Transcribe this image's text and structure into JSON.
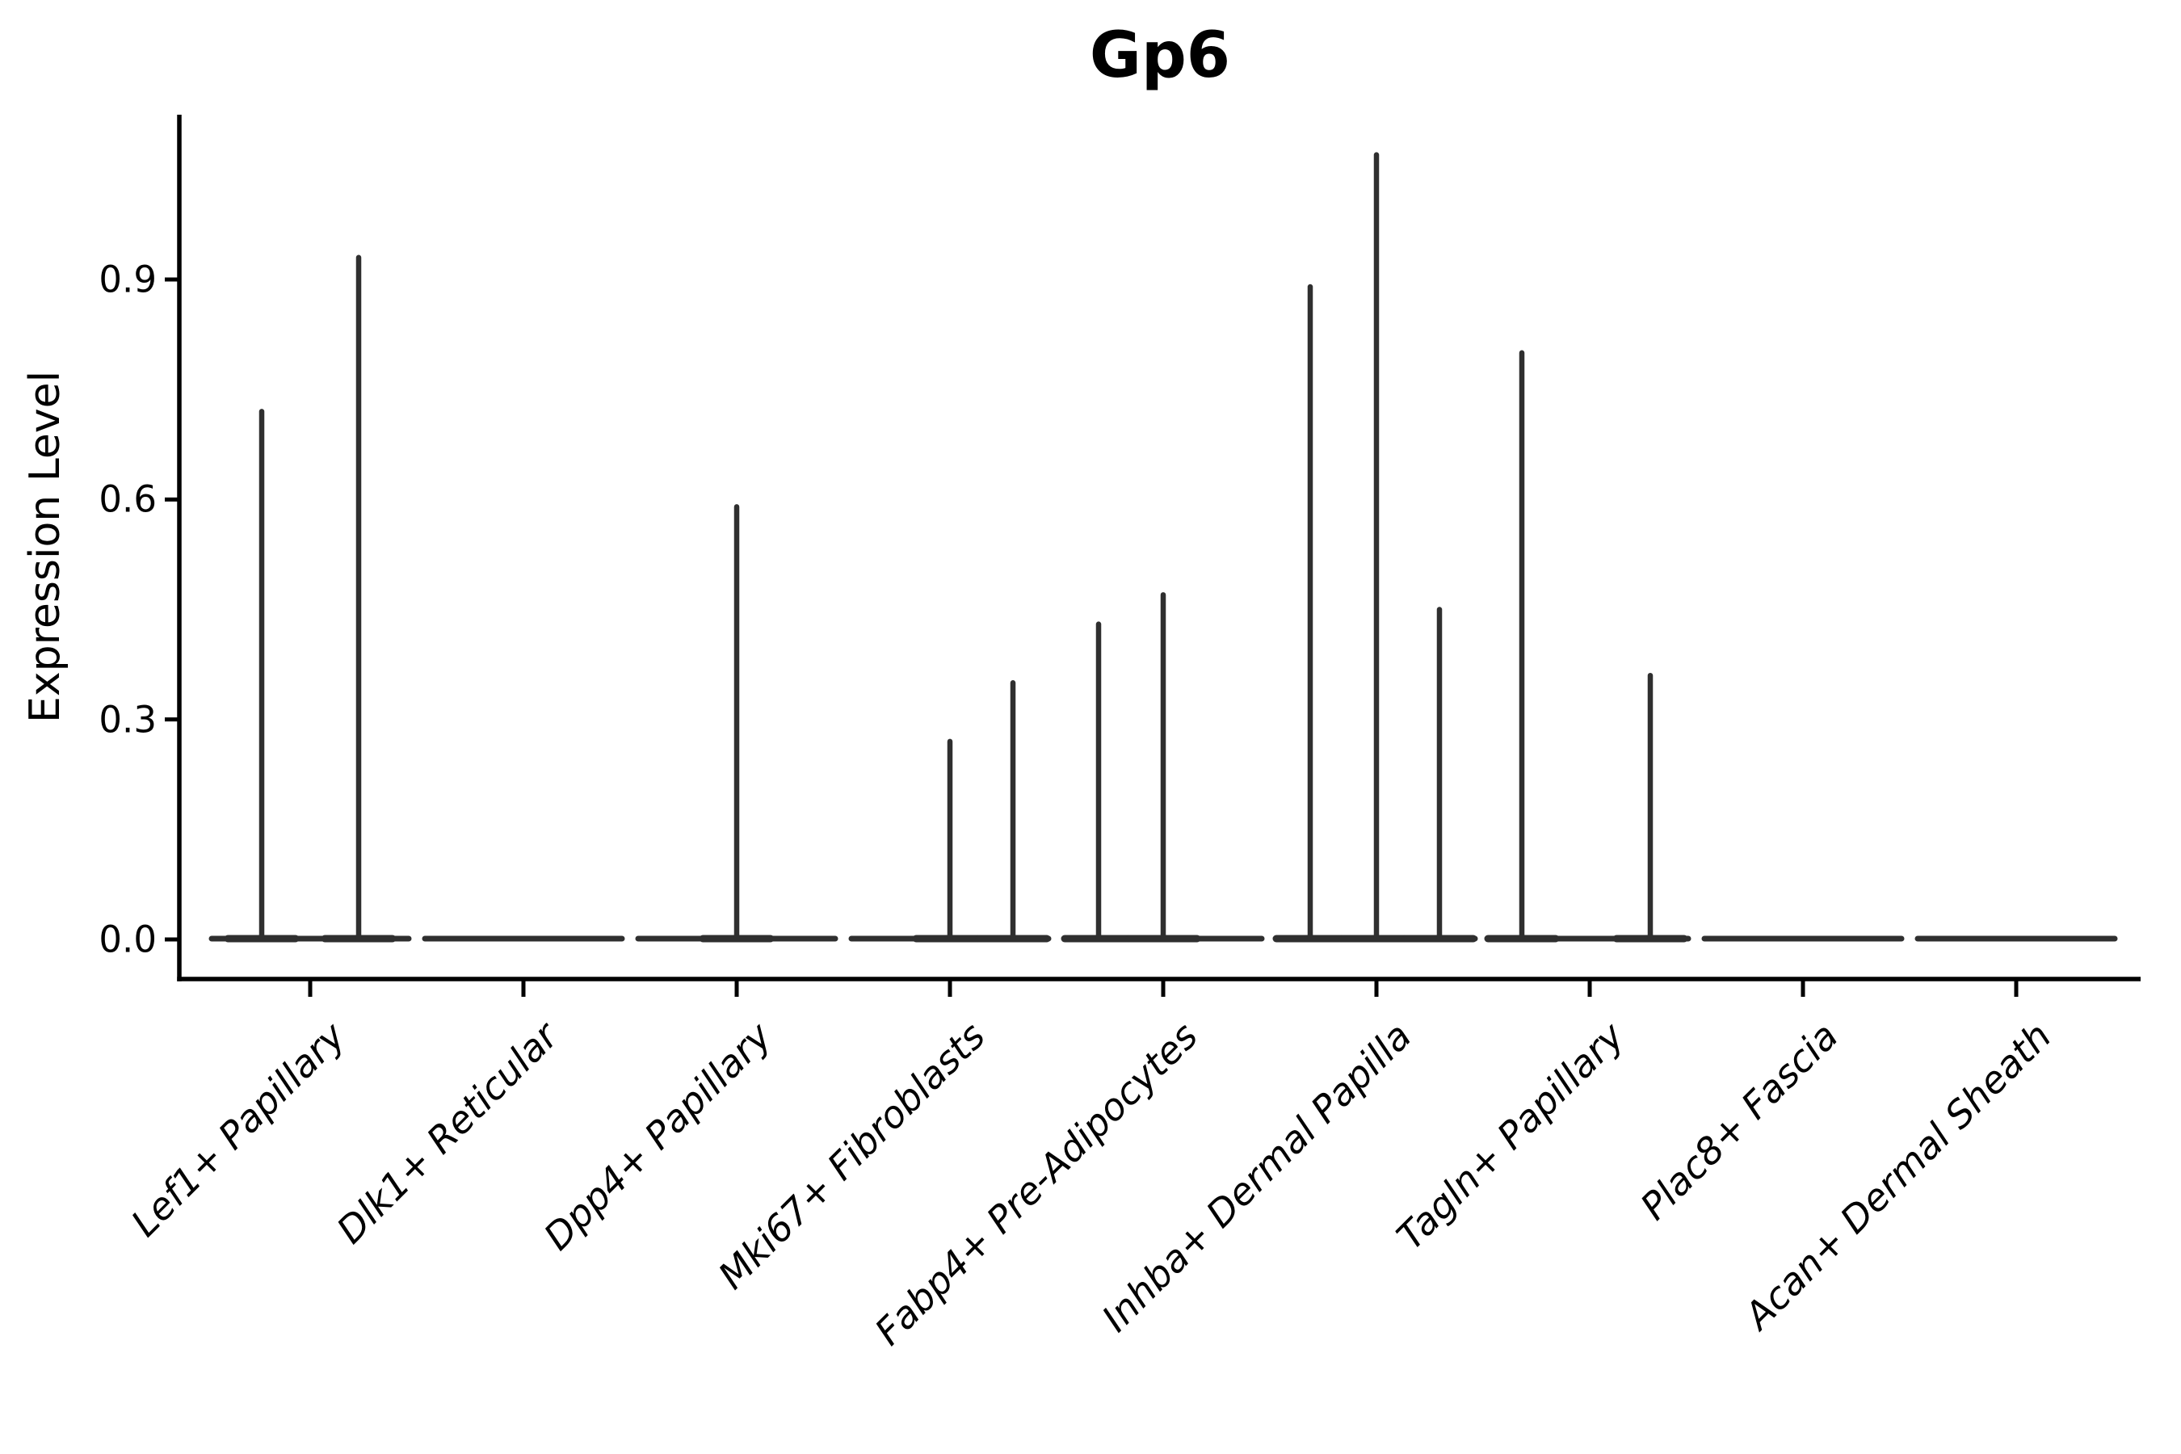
{
  "chart_data": {
    "type": "violin",
    "title": "Gp6",
    "ylabel": "Expression Level",
    "xlabel": "",
    "yticks": [
      0.0,
      0.3,
      0.6,
      0.9
    ],
    "ytick_labels": [
      "0.0",
      "0.3",
      "0.6",
      "0.9"
    ],
    "ylim": [
      -0.05,
      1.13
    ],
    "grid": false,
    "legend": "none",
    "categories": [
      "Lef1+ Papillary",
      "Dlk1+ Reticular",
      "Dpp4+ Papillary",
      "Mki67+ Fibroblasts",
      "Fabp4+ Pre-Adipocytes",
      "Inhba+ Dermal Papilla",
      "Tagln+ Papillary",
      "Plac8+ Fascia",
      "Acan+ Dermal Sheath"
    ],
    "violins": [
      {
        "category": "Lef1+ Papillary",
        "baseline_value": 0.0,
        "spikes": [
          {
            "dx": -60,
            "max": 0.72
          },
          {
            "dx": 60,
            "max": 0.93
          }
        ]
      },
      {
        "category": "Dlk1+ Reticular",
        "baseline_value": 0.0,
        "spikes": []
      },
      {
        "category": "Dpp4+ Papillary",
        "baseline_value": 0.0,
        "spikes": [
          {
            "dx": 0,
            "max": 0.59
          }
        ]
      },
      {
        "category": "Mki67+ Fibroblasts",
        "baseline_value": 0.0,
        "spikes": [
          {
            "dx": 0,
            "max": 0.27
          },
          {
            "dx": 78,
            "max": 0.35
          }
        ]
      },
      {
        "category": "Fabp4+ Pre-Adipocytes",
        "baseline_value": 0.0,
        "spikes": [
          {
            "dx": -80,
            "max": 0.43
          },
          {
            "dx": 0,
            "max": 0.47
          }
        ]
      },
      {
        "category": "Inhba+ Dermal Papilla",
        "baseline_value": 0.0,
        "spikes": [
          {
            "dx": -82,
            "max": 0.89
          },
          {
            "dx": 0,
            "max": 1.07
          },
          {
            "dx": 78,
            "max": 0.45
          }
        ]
      },
      {
        "category": "Tagln+ Papillary",
        "baseline_value": 0.0,
        "spikes": [
          {
            "dx": -84,
            "max": 0.8
          },
          {
            "dx": 75,
            "max": 0.36
          }
        ]
      },
      {
        "category": "Plac8+ Fascia",
        "baseline_value": 0.0,
        "spikes": []
      },
      {
        "category": "Acan+ Dermal Sheath",
        "baseline_value": 0.0,
        "spikes": []
      }
    ],
    "colors": {
      "violin": "#2f2f2f",
      "axis": "#000000",
      "text": "#000000",
      "background": "#ffffff"
    }
  }
}
